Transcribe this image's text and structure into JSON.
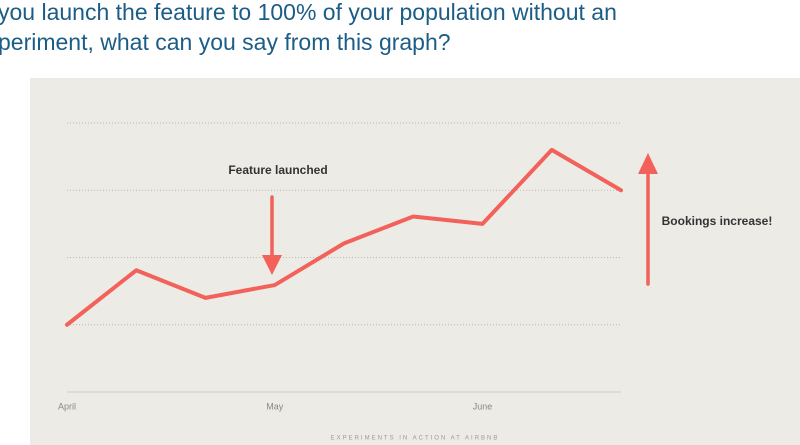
{
  "title_lines": [
    "you launch the feature to 100% of your population without an",
    "periment, what can you say from this graph?"
  ],
  "footer": "EXPERIMENTS IN ACTION AT AIRBNB",
  "chart_data": {
    "type": "line",
    "categories": [
      "April",
      null,
      null,
      "May",
      null,
      null,
      "June",
      null,
      null
    ],
    "values": [
      1.0,
      1.81,
      1.4,
      1.59,
      2.21,
      2.61,
      2.5,
      3.6,
      3.0
    ],
    "color": "#f2625a",
    "ylim": [
      0,
      4
    ],
    "yticks": [
      0,
      1,
      2,
      3,
      4
    ],
    "grid": true,
    "annotations": [
      "Feature launched",
      "Bookings increase!"
    ]
  }
}
